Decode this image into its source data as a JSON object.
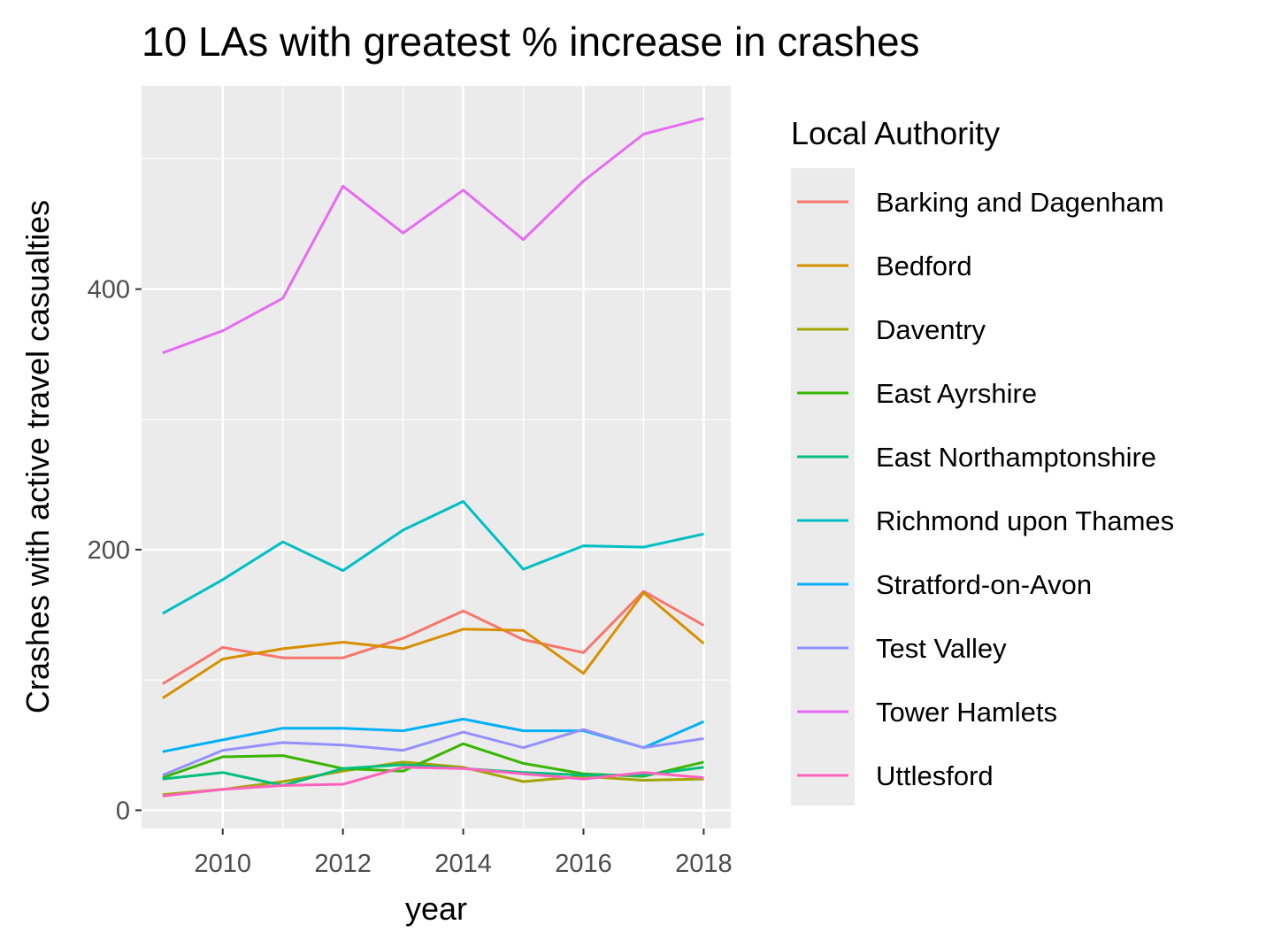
{
  "chart_data": {
    "type": "line",
    "title": "10 LAs with greatest % increase in crashes",
    "xlabel": "year",
    "ylabel": "Crashes with active travel casualties",
    "legend_title": "Local Authority",
    "legend_position": "right",
    "grid": true,
    "x": [
      2009,
      2010,
      2011,
      2012,
      2013,
      2014,
      2015,
      2016,
      2017,
      2018
    ],
    "xlim": [
      2008.65,
      2018.45
    ],
    "ylim": [
      -14,
      556
    ],
    "x_ticks": [
      "2010",
      "2012",
      "2014",
      "2016",
      "2018"
    ],
    "y_ticks": [
      "0",
      "200",
      "400"
    ],
    "series": [
      {
        "name": "Barking and Dagenham",
        "color": "#F8766D",
        "values": [
          97,
          125,
          117,
          117,
          132,
          153,
          131,
          121,
          168,
          142
        ]
      },
      {
        "name": "Bedford",
        "color": "#D89000",
        "values": [
          86,
          116,
          124,
          129,
          124,
          139,
          138,
          105,
          167,
          128
        ]
      },
      {
        "name": "Daventry",
        "color": "#A3A500",
        "values": [
          12,
          16,
          22,
          30,
          37,
          33,
          22,
          26,
          23,
          24
        ]
      },
      {
        "name": "East Ayrshire",
        "color": "#39B600",
        "values": [
          25,
          41,
          42,
          32,
          30,
          51,
          36,
          28,
          26,
          37
        ]
      },
      {
        "name": "East Northamptonshire",
        "color": "#00BF7D",
        "values": [
          24,
          29,
          19,
          32,
          35,
          32,
          29,
          27,
          27,
          33
        ]
      },
      {
        "name": "Richmond upon Thames",
        "color": "#00BFC4",
        "values": [
          151,
          177,
          206,
          184,
          215,
          237,
          185,
          203,
          202,
          212
        ]
      },
      {
        "name": "Stratford-on-Avon",
        "color": "#00B0F6",
        "values": [
          45,
          54,
          63,
          63,
          61,
          70,
          61,
          61,
          48,
          68
        ]
      },
      {
        "name": "Test Valley",
        "color": "#9590FF",
        "values": [
          27,
          46,
          52,
          50,
          46,
          60,
          48,
          62,
          48,
          55
        ]
      },
      {
        "name": "Tower Hamlets",
        "color": "#E76BF3",
        "values": [
          351,
          368,
          393,
          479,
          443,
          476,
          438,
          483,
          519,
          531
        ]
      },
      {
        "name": "Uttlesford",
        "color": "#FF62BC",
        "values": [
          11,
          16,
          19,
          20,
          33,
          32,
          28,
          24,
          29,
          25
        ]
      }
    ]
  }
}
